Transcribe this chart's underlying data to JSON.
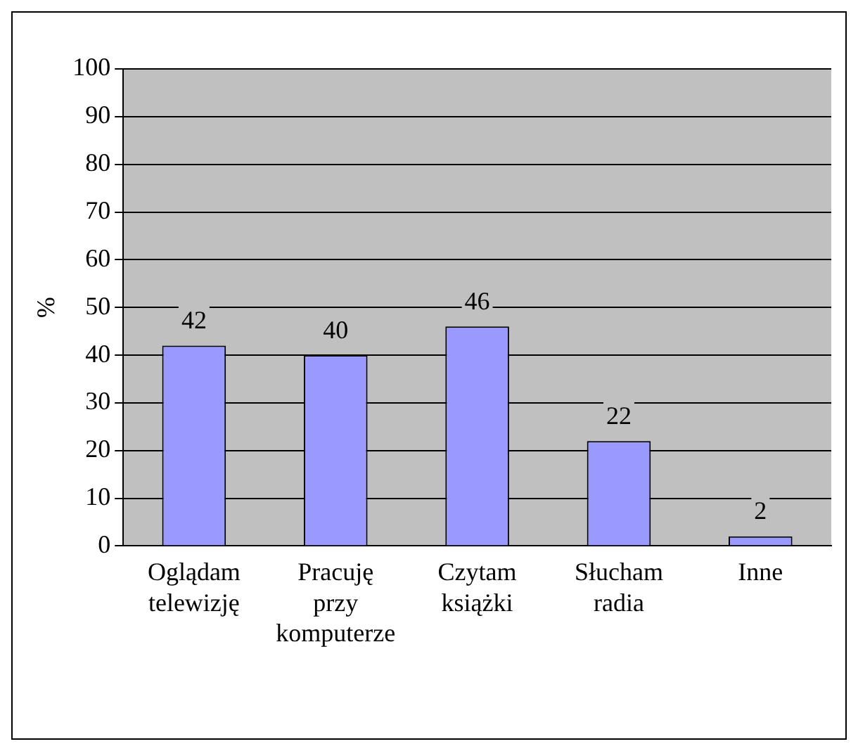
{
  "chart_data": {
    "type": "bar",
    "ylabel": "%",
    "categories": [
      "Oglądam telewizję",
      "Pracuję przy komputerze",
      "Czytam książki",
      "Słucham radia",
      "Inne"
    ],
    "values": [
      42,
      40,
      46,
      22,
      2
    ],
    "color": "#9999ff",
    "ylim": [
      0,
      100
    ],
    "yticks": [
      0,
      10,
      20,
      30,
      40,
      50,
      60,
      70,
      80,
      90,
      100
    ],
    "grid": "y",
    "data_labels": true
  }
}
